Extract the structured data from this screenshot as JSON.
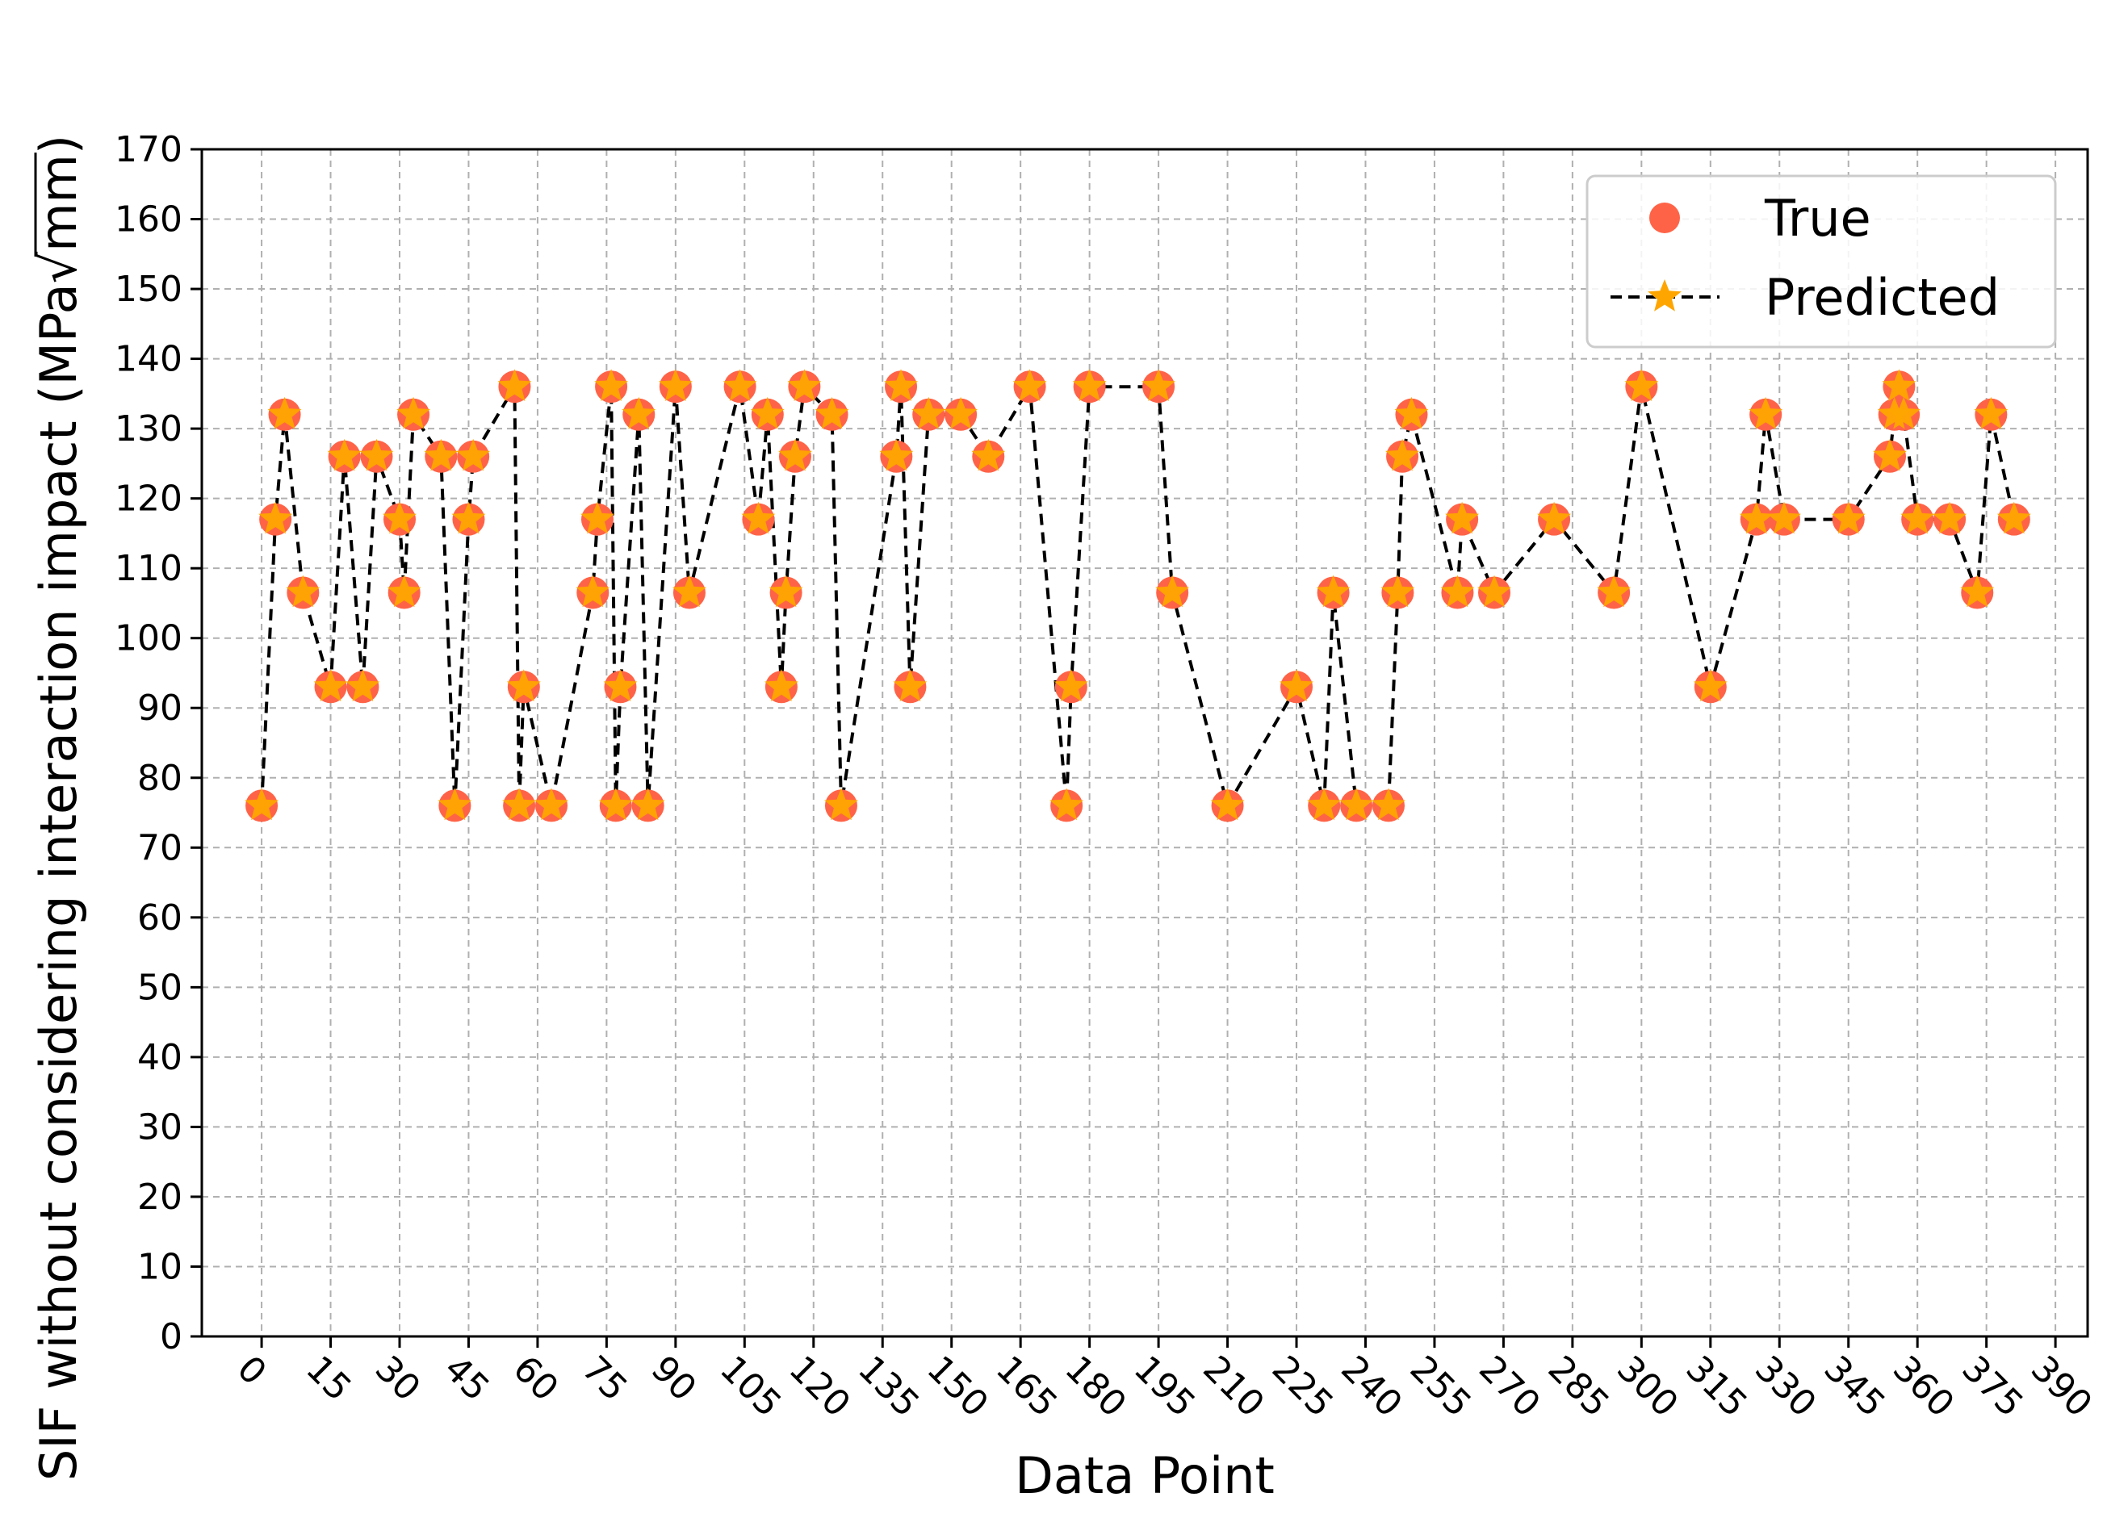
{
  "chart_data": {
    "type": "scatter",
    "title": "",
    "xlabel": "Data Point",
    "ylabel": {
      "main": "SIF without considering interaction impact (MPa",
      "radical": "√",
      "radicand": "mm",
      "close": ")"
    },
    "xlim": [
      -13,
      397
    ],
    "ylim": [
      0,
      170
    ],
    "xticks": [
      0,
      15,
      30,
      45,
      60,
      75,
      90,
      105,
      120,
      135,
      150,
      165,
      180,
      195,
      210,
      225,
      240,
      255,
      270,
      285,
      300,
      315,
      330,
      345,
      360,
      375,
      390
    ],
    "yticks": [
      0,
      10,
      20,
      30,
      40,
      50,
      60,
      70,
      80,
      90,
      100,
      110,
      120,
      130,
      140,
      150,
      160,
      170
    ],
    "x_tick_rotation_deg": 45,
    "grid": true,
    "legend_position": "top-right",
    "colors": {
      "true_marker": "#ff6347",
      "pred_marker": "#ffa500",
      "pred_line": "#000000",
      "grid": "#b0b0b0"
    },
    "series": [
      {
        "name": "True",
        "style": "circle-markers",
        "x": [
          0,
          3,
          5,
          9,
          15,
          18,
          22,
          25,
          30,
          31,
          33,
          39,
          42,
          45,
          46,
          55,
          56,
          57,
          63,
          72,
          73,
          76,
          77,
          78,
          82,
          84,
          90,
          93,
          104,
          108,
          110,
          113,
          114,
          116,
          118,
          124,
          126,
          138,
          139,
          141,
          145,
          152,
          158,
          167,
          175,
          176,
          180,
          195,
          198,
          210,
          225,
          231,
          233,
          238,
          245,
          247,
          248,
          250,
          260,
          261,
          268,
          281,
          294,
          300,
          315,
          325,
          327,
          331,
          345,
          354,
          355,
          356,
          357,
          360,
          367,
          373,
          376,
          381
        ],
        "y": [
          76,
          117,
          132,
          106.5,
          93,
          126,
          93,
          126,
          117,
          106.5,
          132,
          126,
          76,
          117,
          126,
          136,
          76,
          93,
          76,
          106.5,
          117,
          136,
          76,
          93,
          132,
          76,
          136,
          106.5,
          136,
          117,
          132,
          93,
          106.5,
          126,
          136,
          132,
          76,
          126,
          136,
          93,
          132,
          132,
          126,
          136,
          76,
          93,
          136,
          136,
          106.5,
          76,
          93,
          76,
          106.5,
          76,
          76,
          106.5,
          126,
          132,
          106.5,
          117,
          106.5,
          117,
          106.5,
          136,
          93,
          117,
          132,
          117,
          117,
          126,
          132,
          136,
          132,
          117,
          117,
          106.5,
          132,
          117
        ]
      },
      {
        "name": "Predicted",
        "style": "star-markers-dashed-line",
        "x": [
          0,
          3,
          5,
          9,
          15,
          18,
          22,
          25,
          30,
          31,
          33,
          39,
          42,
          45,
          46,
          55,
          56,
          57,
          63,
          72,
          73,
          76,
          77,
          78,
          82,
          84,
          90,
          93,
          104,
          108,
          110,
          113,
          114,
          116,
          118,
          124,
          126,
          138,
          139,
          141,
          145,
          152,
          158,
          167,
          175,
          176,
          180,
          195,
          198,
          210,
          225,
          231,
          233,
          238,
          245,
          247,
          248,
          250,
          260,
          261,
          268,
          281,
          294,
          300,
          315,
          325,
          327,
          331,
          345,
          354,
          355,
          356,
          357,
          360,
          367,
          373,
          376,
          381
        ],
        "y": [
          76,
          117,
          132,
          106.5,
          93,
          126,
          93,
          126,
          117,
          106.5,
          132,
          126,
          76,
          117,
          126,
          136,
          76,
          93,
          76,
          106.5,
          117,
          136,
          76,
          93,
          132,
          76,
          136,
          106.5,
          136,
          117,
          132,
          93,
          106.5,
          126,
          136,
          132,
          76,
          126,
          136,
          93,
          132,
          132,
          126,
          136,
          76,
          93,
          136,
          136,
          106.5,
          76,
          93,
          76,
          106.5,
          76,
          76,
          106.5,
          126,
          132,
          106.5,
          117,
          106.5,
          117,
          106.5,
          136,
          93,
          117,
          132,
          117,
          117,
          126,
          132,
          136,
          132,
          117,
          117,
          106.5,
          132,
          117
        ]
      }
    ]
  }
}
